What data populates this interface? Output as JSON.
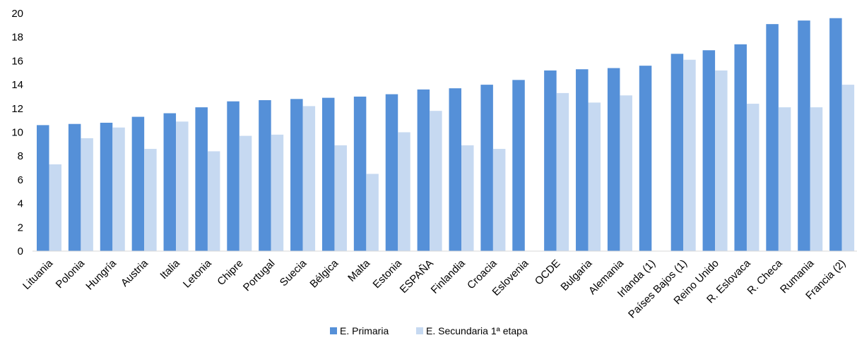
{
  "chart_data": {
    "type": "bar",
    "categories": [
      "Lituania",
      "Polonia",
      "Hungría",
      "Austria",
      "Italia",
      "Letonia",
      "Chipre",
      "Portugal",
      "Suecia",
      "Bélgica",
      "Malta",
      "Estonia",
      "ESPAÑA",
      "Finlandia",
      "Croacia",
      "Eslovenia",
      "OCDE",
      "Bulgaria",
      "Alemania",
      "Irlanda (1)",
      "Países Bajos (1)",
      "Reino Unido",
      "R. Eslovaca",
      "R. Checa",
      "Rumania",
      "Francia (2)"
    ],
    "series": [
      {
        "name": "E. Primaria",
        "color": "#5590d8",
        "values": [
          10.6,
          10.7,
          10.8,
          11.3,
          11.6,
          12.1,
          12.6,
          12.7,
          12.8,
          12.9,
          13.0,
          13.2,
          13.6,
          13.7,
          14.0,
          14.4,
          15.2,
          15.3,
          15.4,
          15.6,
          16.6,
          16.9,
          17.4,
          19.1,
          19.4,
          19.6
        ]
      },
      {
        "name": "E. Secundaria 1ª etapa",
        "color": "#c6d9f1",
        "values": [
          7.3,
          9.5,
          10.4,
          8.6,
          10.9,
          8.4,
          9.7,
          9.8,
          12.2,
          8.9,
          6.5,
          10.0,
          11.8,
          8.9,
          8.6,
          null,
          13.3,
          12.5,
          13.1,
          null,
          16.1,
          15.2,
          12.4,
          12.1,
          12.1,
          14.0
        ]
      }
    ],
    "xlabel": "",
    "ylabel": "",
    "ylim": [
      0,
      20
    ],
    "yticks": [
      "0",
      "2",
      "4",
      "6",
      "8",
      "10",
      "12",
      "14",
      "16",
      "18",
      "20"
    ],
    "grid": false,
    "legend_position": "bottom-center"
  }
}
